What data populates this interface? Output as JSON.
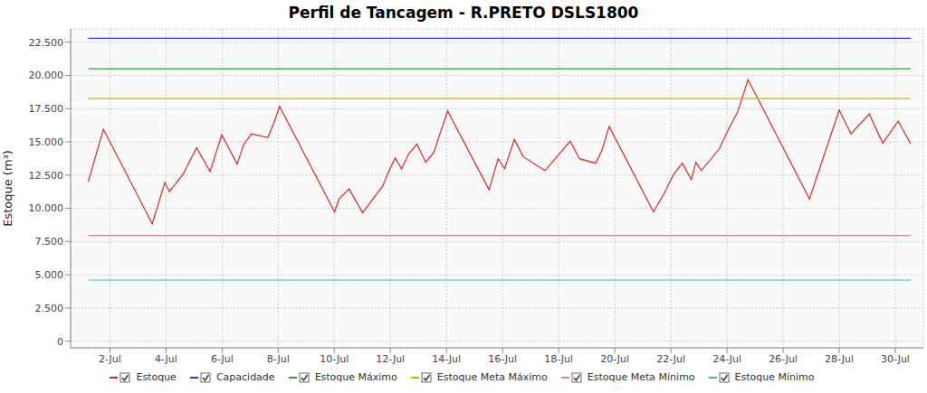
{
  "chart_data": {
    "type": "line",
    "title": "Perfil de Tancagem - R.PRETO DSLS1800",
    "y_label": "Estoque (m³)",
    "x": [
      1.23,
      1.77,
      3.51,
      3.96,
      4.12,
      4.61,
      5.09,
      5.57,
      5.99,
      6.54,
      6.76,
      7.05,
      7.63,
      7.86,
      8.05,
      10.01,
      10.17,
      10.53,
      11.01,
      11.72,
      11.91,
      12.17,
      12.4,
      12.65,
      12.94,
      13.26,
      13.55,
      14.04,
      15.52,
      15.84,
      16.07,
      16.42,
      16.74,
      17.51,
      18.41,
      18.74,
      19.32,
      19.54,
      19.8,
      21.38,
      21.79,
      22.08,
      22.41,
      22.73,
      22.89,
      23.08,
      23.73,
      24.05,
      24.37,
      24.75,
      26.94,
      28.0,
      28.42,
      29.07,
      29.55,
      30.1,
      30.55
    ],
    "series": [
      {
        "name": "Estoque",
        "color": "#dd2222",
        "values": [
          12000,
          15950,
          8830,
          11940,
          11250,
          12560,
          14560,
          12770,
          15530,
          13320,
          14770,
          15600,
          15320,
          16500,
          17670,
          9730,
          10700,
          11460,
          9660,
          11660,
          12630,
          13800,
          12980,
          14080,
          14840,
          13460,
          14220,
          17320,
          11390,
          13730,
          12980,
          15180,
          13870,
          12840,
          15050,
          13730,
          13390,
          14360,
          16150,
          9730,
          11250,
          12490,
          13390,
          12150,
          13460,
          12840,
          14490,
          15940,
          17190,
          19670,
          10700,
          17400,
          15600,
          17100,
          14900,
          16550,
          14850
        ]
      },
      {
        "name": "Capacidade",
        "color": "#3333ee",
        "values": [
          22800,
          22800,
          22800,
          22800,
          22800,
          22800,
          22800,
          22800,
          22800,
          22800,
          22800,
          22800,
          22800,
          22800,
          22800,
          22800,
          22800,
          22800,
          22800,
          22800,
          22800,
          22800,
          22800,
          22800,
          22800,
          22800,
          22800,
          22800,
          22800,
          22800,
          22800,
          22800,
          22800,
          22800,
          22800,
          22800,
          22800,
          22800,
          22800,
          22800,
          22800,
          22800,
          22800,
          22800,
          22800,
          22800,
          22800,
          22800,
          22800,
          22800,
          22800,
          22800,
          22800,
          22800,
          22800,
          22800,
          22800
        ]
      },
      {
        "name": "Estoque Máximo",
        "color": "#22aa22",
        "values": [
          20500,
          20500,
          20500,
          20500,
          20500,
          20500,
          20500,
          20500,
          20500,
          20500,
          20500,
          20500,
          20500,
          20500,
          20500,
          20500,
          20500,
          20500,
          20500,
          20500,
          20500,
          20500,
          20500,
          20500,
          20500,
          20500,
          20500,
          20500,
          20500,
          20500,
          20500,
          20500,
          20500,
          20500,
          20500,
          20500,
          20500,
          20500,
          20500,
          20500,
          20500,
          20500,
          20500,
          20500,
          20500,
          20500,
          20500,
          20500,
          20500,
          20500,
          20500,
          20500,
          20500,
          20500,
          20500,
          20500,
          20500
        ]
      },
      {
        "name": "Estoque Meta Máximo",
        "color": "#c8b400",
        "values": [
          18250,
          18250,
          18250,
          18250,
          18250,
          18250,
          18250,
          18250,
          18250,
          18250,
          18250,
          18250,
          18250,
          18250,
          18250,
          18250,
          18250,
          18250,
          18250,
          18250,
          18250,
          18250,
          18250,
          18250,
          18250,
          18250,
          18250,
          18250,
          18250,
          18250,
          18250,
          18250,
          18250,
          18250,
          18250,
          18250,
          18250,
          18250,
          18250,
          18250,
          18250,
          18250,
          18250,
          18250,
          18250,
          18250,
          18250,
          18250,
          18250,
          18250,
          18250,
          18250,
          18250,
          18250,
          18250,
          18250,
          18250
        ]
      },
      {
        "name": "Estoque Meta Mínimo",
        "color": "#c88888",
        "values": [
          7950,
          7950,
          7950,
          7950,
          7950,
          7950,
          7950,
          7950,
          7950,
          7950,
          7950,
          7950,
          7950,
          7950,
          7950,
          7950,
          7950,
          7950,
          7950,
          7950,
          7950,
          7950,
          7950,
          7950,
          7950,
          7950,
          7950,
          7950,
          7950,
          7950,
          7950,
          7950,
          7950,
          7950,
          7950,
          7950,
          7950,
          7950,
          7950,
          7950,
          7950,
          7950,
          7950,
          7950,
          7950,
          7950,
          7950,
          7950,
          7950,
          7950,
          7950,
          7950,
          7950,
          7950,
          7950,
          7950,
          7950
        ]
      },
      {
        "name": "Estoque Mínimo",
        "color": "#33bbcc",
        "values": [
          4600,
          4600,
          4600,
          4600,
          4600,
          4600,
          4600,
          4600,
          4600,
          4600,
          4600,
          4600,
          4600,
          4600,
          4600,
          4600,
          4600,
          4600,
          4600,
          4600,
          4600,
          4600,
          4600,
          4600,
          4600,
          4600,
          4600,
          4600,
          4600,
          4600,
          4600,
          4600,
          4600,
          4600,
          4600,
          4600,
          4600,
          4600,
          4600,
          4600,
          4600,
          4600,
          4600,
          4600,
          4600,
          4600,
          4600,
          4600,
          4600,
          4600,
          4600,
          4600,
          4600,
          4600,
          4600,
          4600,
          4600
        ]
      }
    ],
    "xlim": [
      0.6,
      31
    ],
    "xticks": [
      {
        "value": 2,
        "label": "2-Jul"
      },
      {
        "value": 4,
        "label": "4-Jul"
      },
      {
        "value": 6,
        "label": "6-Jul"
      },
      {
        "value": 8,
        "label": "8-Jul"
      },
      {
        "value": 10,
        "label": "10-Jul"
      },
      {
        "value": 12,
        "label": "12-Jul"
      },
      {
        "value": 14,
        "label": "14-Jul"
      },
      {
        "value": 16,
        "label": "16-Jul"
      },
      {
        "value": 18,
        "label": "18-Jul"
      },
      {
        "value": 20,
        "label": "20-Jul"
      },
      {
        "value": 22,
        "label": "22-Jul"
      },
      {
        "value": 24,
        "label": "24-Jul"
      },
      {
        "value": 26,
        "label": "26-Jul"
      },
      {
        "value": 28,
        "label": "28-Jul"
      },
      {
        "value": 30,
        "label": "30-Jul"
      }
    ],
    "ylim": [
      -500,
      23500
    ],
    "yticks": [
      0,
      {
        "value": 2500,
        "label": "2.500"
      },
      {
        "value": 5000,
        "label": "5.000"
      },
      {
        "value": 7500,
        "label": "7.500"
      },
      {
        "value": 10000,
        "label": "10.000"
      },
      {
        "value": 12500,
        "label": "12.500"
      },
      {
        "value": 15000,
        "label": "15.000"
      },
      {
        "value": 17500,
        "label": "17.500"
      },
      {
        "value": 20000,
        "label": "20.000"
      },
      {
        "value": 22500,
        "label": "22.500"
      }
    ],
    "grid": true,
    "legend": "bottom"
  }
}
